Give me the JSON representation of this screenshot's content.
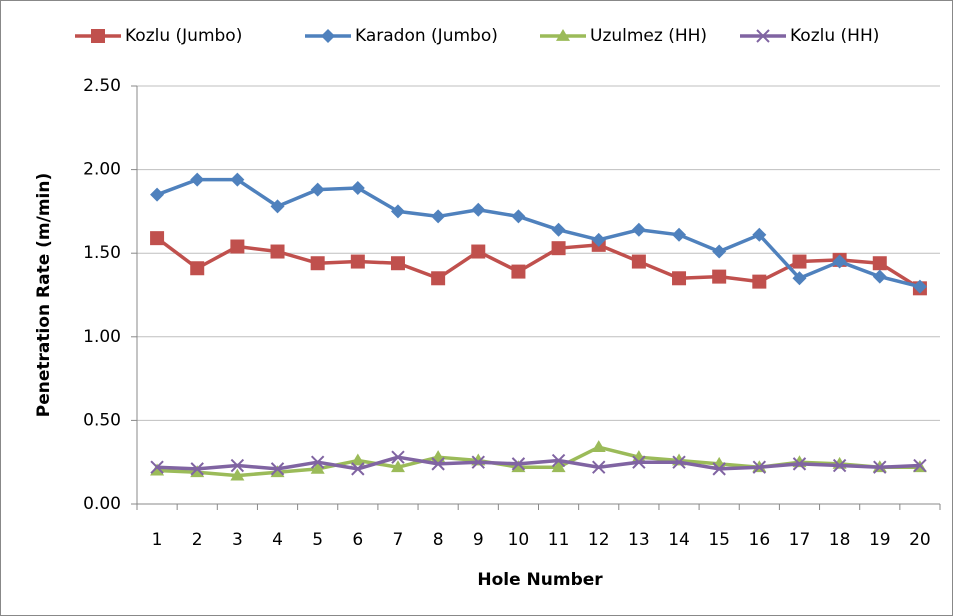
{
  "chart_data": {
    "type": "line",
    "categories": [
      1,
      2,
      3,
      4,
      5,
      6,
      7,
      8,
      9,
      10,
      11,
      12,
      13,
      14,
      15,
      16,
      17,
      18,
      19,
      20
    ],
    "x_label": "Hole Number",
    "y_label": "Penetration Rate (m/min)",
    "ylim": [
      0,
      2.5
    ],
    "yticks": [
      {
        "value": 0,
        "label": "0.00"
      },
      {
        "value": 0.5,
        "label": "0.50"
      },
      {
        "value": 1,
        "label": "1.00"
      },
      {
        "value": 1.5,
        "label": "1.50"
      },
      {
        "value": 2,
        "label": "2.00"
      },
      {
        "value": 2.5,
        "label": "2.50"
      }
    ],
    "grid": true,
    "legend": "top",
    "series": [
      {
        "name": "Kozlu (Jumbo)",
        "color": "#c0504d",
        "marker": "square",
        "values": [
          1.59,
          1.41,
          1.54,
          1.51,
          1.44,
          1.45,
          1.44,
          1.35,
          1.51,
          1.39,
          1.53,
          1.55,
          1.45,
          1.35,
          1.36,
          1.33,
          1.45,
          1.46,
          1.44,
          1.29
        ]
      },
      {
        "name": "Karadon (Jumbo)",
        "color": "#4f81bd",
        "marker": "diamond",
        "values": [
          1.85,
          1.94,
          1.94,
          1.78,
          1.88,
          1.89,
          1.75,
          1.72,
          1.76,
          1.72,
          1.64,
          1.58,
          1.64,
          1.61,
          1.51,
          1.61,
          1.35,
          1.45,
          1.36,
          1.3
        ]
      },
      {
        "name": "Uzulmez (HH)",
        "color": "#9bbb59",
        "marker": "triangle",
        "values": [
          0.2,
          0.19,
          0.17,
          0.19,
          0.21,
          0.26,
          0.22,
          0.28,
          0.26,
          0.22,
          0.22,
          0.34,
          0.28,
          0.26,
          0.24,
          0.22,
          0.25,
          0.24,
          0.22,
          0.22
        ]
      },
      {
        "name": "Kozlu (HH)",
        "color": "#8064a2",
        "marker": "x",
        "values": [
          0.22,
          0.21,
          0.23,
          0.21,
          0.25,
          0.21,
          0.28,
          0.24,
          0.25,
          0.24,
          0.26,
          0.22,
          0.25,
          0.25,
          0.21,
          0.22,
          0.24,
          0.23,
          0.22,
          0.23
        ]
      }
    ]
  }
}
